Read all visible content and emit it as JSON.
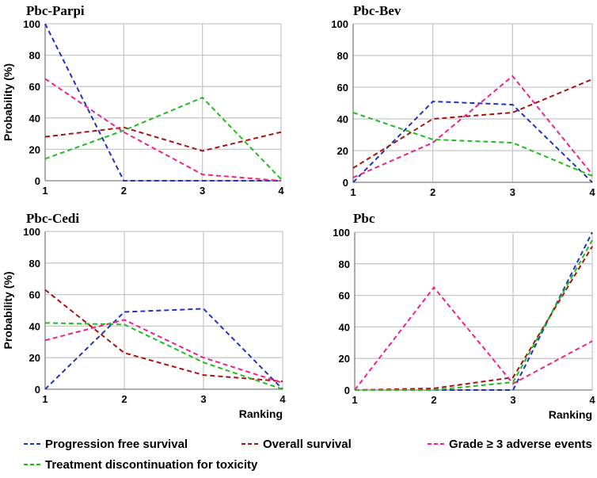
{
  "chart_data": {
    "type": "line",
    "xlabel": "Ranking",
    "ylabel": "Probability (%)",
    "xticks": [
      "1",
      "2",
      "3",
      "4"
    ],
    "yticks": [
      "0",
      "20",
      "40",
      "60",
      "80",
      "100"
    ],
    "ylim": [
      0,
      100
    ],
    "x": [
      1,
      2,
      3,
      4
    ],
    "legend": [
      {
        "key": "pfs",
        "name": "Progression free survival",
        "color": "#2233bb"
      },
      {
        "key": "os",
        "name": "Overall survival",
        "color": "#aa1111"
      },
      {
        "key": "ae",
        "name": "Grade ≥ 3 adverse events",
        "color": "#ee2288"
      },
      {
        "key": "tox",
        "name": "Treatment discontinuation for toxicity",
        "color": "#22bb22"
      }
    ],
    "panels": [
      {
        "title": "Pbc-Parpi",
        "series": {
          "pfs": [
            100,
            0,
            0,
            0
          ],
          "os": [
            28,
            34,
            19,
            31
          ],
          "ae": [
            65,
            31,
            4,
            0
          ],
          "tox": [
            14,
            32,
            53,
            1
          ]
        }
      },
      {
        "title": "Pbc-Bev",
        "series": {
          "pfs": [
            0,
            51,
            49,
            0
          ],
          "os": [
            9,
            40,
            44,
            65
          ],
          "ae": [
            3,
            25,
            67,
            5
          ],
          "tox": [
            44,
            27,
            25,
            4
          ]
        }
      },
      {
        "title": "Pbc-Cedi",
        "series": {
          "pfs": [
            0,
            49,
            51,
            0
          ],
          "os": [
            63,
            23,
            9,
            5
          ],
          "ae": [
            31,
            44,
            20,
            4
          ],
          "tox": [
            42,
            41,
            17,
            0
          ]
        }
      },
      {
        "title": "Pbc",
        "series": {
          "pfs": [
            0,
            0,
            0,
            100
          ],
          "os": [
            0,
            1,
            8,
            91
          ],
          "ae": [
            0,
            65,
            4,
            31
          ],
          "tox": [
            0,
            0,
            5,
            95
          ]
        }
      }
    ]
  }
}
